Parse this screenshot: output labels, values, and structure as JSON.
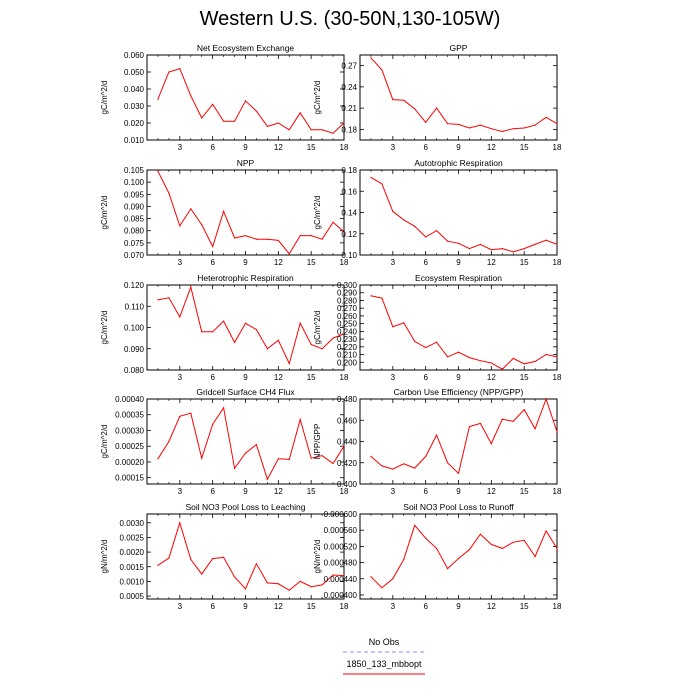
{
  "title": "Western U.S. (30-50N,130-105W)",
  "legend": {
    "entries": [
      {
        "name": "No Obs",
        "color": "#8888ee",
        "dashed": true
      },
      {
        "name": "1850_133_mbbopt",
        "color": "#ff0000",
        "dashed": false
      }
    ]
  },
  "chart_data": [
    {
      "type": "line",
      "title": "Net Ecosystem Exchange",
      "ylabel": "gC/m^2/d",
      "xlim": [
        0,
        18
      ],
      "xticks": [
        3,
        6,
        9,
        12,
        15,
        18
      ],
      "ylim": [
        0.01,
        0.06
      ],
      "yticks": [
        0.01,
        0.02,
        0.03,
        0.04,
        0.05,
        0.06
      ],
      "ytick_labels": [
        "0.010",
        "0.020",
        "0.030",
        "0.040",
        "0.050",
        "0.060"
      ],
      "series": [
        {
          "color": "#ff0000",
          "x": [
            1,
            2,
            3,
            4,
            5,
            6,
            7,
            8,
            9,
            10,
            11,
            12,
            13,
            14,
            15,
            16,
            17,
            18
          ],
          "y": [
            0.034,
            0.05,
            0.052,
            0.036,
            0.023,
            0.031,
            0.021,
            0.021,
            0.033,
            0.027,
            0.018,
            0.02,
            0.016,
            0.026,
            0.016,
            0.016,
            0.014,
            0.02
          ]
        }
      ]
    },
    {
      "type": "line",
      "title": "GPP",
      "ylabel": "gC/m^2/d",
      "xlim": [
        0,
        18
      ],
      "xticks": [
        3,
        6,
        9,
        12,
        15,
        18
      ],
      "ylim": [
        0.165,
        0.285
      ],
      "yticks": [
        0.18,
        0.21,
        0.24,
        0.27
      ],
      "ytick_labels": [
        "0.18",
        "0.21",
        "0.24",
        "0.27"
      ],
      "series": [
        {
          "color": "#ff0000",
          "x": [
            1,
            2,
            3,
            4,
            5,
            6,
            7,
            8,
            9,
            10,
            11,
            12,
            13,
            14,
            15,
            16,
            17,
            18
          ],
          "y": [
            0.281,
            0.264,
            0.222,
            0.221,
            0.209,
            0.19,
            0.21,
            0.188,
            0.187,
            0.182,
            0.186,
            0.181,
            0.177,
            0.181,
            0.182,
            0.186,
            0.197,
            0.188
          ]
        }
      ]
    },
    {
      "type": "line",
      "title": "NPP",
      "ylabel": "gC/m^2/d",
      "xlim": [
        0,
        18
      ],
      "xticks": [
        3,
        6,
        9,
        12,
        15,
        18
      ],
      "ylim": [
        0.07,
        0.105
      ],
      "yticks": [
        0.07,
        0.075,
        0.08,
        0.085,
        0.09,
        0.095,
        0.1,
        0.105
      ],
      "ytick_labels": [
        "0.070",
        "0.075",
        "0.080",
        "0.085",
        "0.090",
        "0.095",
        "0.100",
        "0.105"
      ],
      "series": [
        {
          "color": "#ff0000",
          "x": [
            1,
            2,
            3,
            4,
            5,
            6,
            7,
            8,
            9,
            10,
            11,
            12,
            13,
            14,
            15,
            16,
            17,
            18
          ],
          "y": [
            0.1045,
            0.0955,
            0.082,
            0.089,
            0.0825,
            0.0735,
            0.088,
            0.077,
            0.078,
            0.0765,
            0.0765,
            0.076,
            0.0705,
            0.078,
            0.078,
            0.0765,
            0.0835,
            0.0795
          ]
        }
      ]
    },
    {
      "type": "line",
      "title": "Autotrophic Respiration",
      "ylabel": "gC/m^2/d",
      "xlim": [
        0,
        18
      ],
      "xticks": [
        3,
        6,
        9,
        12,
        15,
        18
      ],
      "ylim": [
        0.1,
        0.18
      ],
      "yticks": [
        0.1,
        0.12,
        0.14,
        0.16,
        0.18
      ],
      "ytick_labels": [
        "0.10",
        "0.12",
        "0.14",
        "0.16",
        "0.18"
      ],
      "series": [
        {
          "color": "#ff0000",
          "x": [
            1,
            2,
            3,
            4,
            5,
            6,
            7,
            8,
            9,
            10,
            11,
            12,
            13,
            14,
            15,
            16,
            17,
            18
          ],
          "y": [
            0.173,
            0.167,
            0.141,
            0.133,
            0.127,
            0.117,
            0.123,
            0.113,
            0.111,
            0.106,
            0.11,
            0.105,
            0.106,
            0.103,
            0.106,
            0.11,
            0.114,
            0.11
          ]
        }
      ]
    },
    {
      "type": "line",
      "title": "Heterotrophic Respiration",
      "ylabel": "gC/m^2/d",
      "xlim": [
        0,
        18
      ],
      "xticks": [
        3,
        6,
        9,
        12,
        15,
        18
      ],
      "ylim": [
        0.08,
        0.12
      ],
      "yticks": [
        0.08,
        0.09,
        0.1,
        0.11,
        0.12
      ],
      "ytick_labels": [
        "0.080",
        "0.090",
        "0.100",
        "0.110",
        "0.120"
      ],
      "series": [
        {
          "color": "#ff0000",
          "x": [
            1,
            2,
            3,
            4,
            5,
            6,
            7,
            8,
            9,
            10,
            11,
            12,
            13,
            14,
            15,
            16,
            17,
            18
          ],
          "y": [
            0.113,
            0.114,
            0.105,
            0.119,
            0.098,
            0.098,
            0.103,
            0.093,
            0.102,
            0.099,
            0.09,
            0.094,
            0.083,
            0.102,
            0.092,
            0.09,
            0.095,
            0.097
          ]
        }
      ]
    },
    {
      "type": "line",
      "title": "Ecosystem Respiration",
      "ylabel": "gC/m^2/d",
      "xlim": [
        0,
        18
      ],
      "xticks": [
        3,
        6,
        9,
        12,
        15,
        18
      ],
      "ylim": [
        0.19,
        0.3
      ],
      "yticks": [
        0.2,
        0.21,
        0.22,
        0.23,
        0.24,
        0.25,
        0.26,
        0.27,
        0.28,
        0.29,
        0.3
      ],
      "ytick_labels": [
        "0.200",
        "0.210",
        "0.220",
        "0.230",
        "0.240",
        "0.250",
        "0.260",
        "0.270",
        "0.280",
        "0.290",
        "0.300"
      ],
      "series": [
        {
          "color": "#ff0000",
          "x": [
            1,
            2,
            3,
            4,
            5,
            6,
            7,
            8,
            9,
            10,
            11,
            12,
            13,
            14,
            15,
            16,
            17,
            18
          ],
          "y": [
            0.286,
            0.283,
            0.246,
            0.251,
            0.227,
            0.219,
            0.226,
            0.207,
            0.213,
            0.206,
            0.202,
            0.199,
            0.191,
            0.205,
            0.198,
            0.201,
            0.21,
            0.207
          ]
        }
      ]
    },
    {
      "type": "line",
      "title": "Gridcell Surface CH4 Flux",
      "ylabel": "gC/m^2/d",
      "xlim": [
        0,
        18
      ],
      "xticks": [
        3,
        6,
        9,
        12,
        15,
        18
      ],
      "ylim": [
        0.00013,
        0.0004
      ],
      "yticks": [
        0.00015,
        0.0002,
        0.00025,
        0.0003,
        0.00035,
        0.0004
      ],
      "ytick_labels": [
        "0.00015",
        "0.00020",
        "0.00025",
        "0.00030",
        "0.00035",
        "0.00040"
      ],
      "series": [
        {
          "color": "#ff0000",
          "x": [
            1,
            2,
            3,
            4,
            5,
            6,
            7,
            8,
            9,
            10,
            11,
            12,
            13,
            14,
            15,
            16,
            17,
            18
          ],
          "y": [
            0.00021,
            0.000265,
            0.000345,
            0.000355,
            0.000212,
            0.00032,
            0.000372,
            0.00018,
            0.000228,
            0.000255,
            0.000145,
            0.00021,
            0.000208,
            0.000335,
            0.000212,
            0.00022,
            0.000195,
            0.00025
          ]
        }
      ]
    },
    {
      "type": "line",
      "title": "Carbon Use Efficiency (NPP/GPP)",
      "ylabel": "NPP/GPP",
      "xlim": [
        0,
        18
      ],
      "xticks": [
        3,
        6,
        9,
        12,
        15,
        18
      ],
      "ylim": [
        0.4,
        0.48
      ],
      "yticks": [
        0.4,
        0.42,
        0.44,
        0.46,
        0.48
      ],
      "ytick_labels": [
        "0.400",
        "0.420",
        "0.440",
        "0.460",
        "0.480"
      ],
      "series": [
        {
          "color": "#ff0000",
          "x": [
            1,
            2,
            3,
            4,
            5,
            6,
            7,
            8,
            9,
            10,
            11,
            12,
            13,
            14,
            15,
            16,
            17,
            18
          ],
          "y": [
            0.426,
            0.417,
            0.414,
            0.419,
            0.415,
            0.426,
            0.446,
            0.42,
            0.41,
            0.454,
            0.457,
            0.438,
            0.461,
            0.459,
            0.47,
            0.452,
            0.48,
            0.449
          ]
        }
      ]
    },
    {
      "type": "line",
      "title": "Soil NO3 Pool Loss to Leaching",
      "ylabel": "gN/m^2/d",
      "xlim": [
        0,
        18
      ],
      "xticks": [
        3,
        6,
        9,
        12,
        15,
        18
      ],
      "ylim": [
        0.0004,
        0.0033
      ],
      "yticks": [
        0.0005,
        0.001,
        0.0015,
        0.002,
        0.0025,
        0.003
      ],
      "ytick_labels": [
        "0.0005",
        "0.0010",
        "0.0015",
        "0.0020",
        "0.0025",
        "0.0030"
      ],
      "series": [
        {
          "color": "#ff0000",
          "x": [
            1,
            2,
            3,
            4,
            5,
            6,
            7,
            8,
            9,
            10,
            11,
            12,
            13,
            14,
            15,
            16,
            17,
            18
          ],
          "y": [
            0.00155,
            0.0018,
            0.003,
            0.00175,
            0.00125,
            0.00178,
            0.00182,
            0.00115,
            0.00075,
            0.0016,
            0.00095,
            0.00092,
            0.0007,
            0.001,
            0.00082,
            0.00088,
            0.00122,
            0.0012
          ]
        }
      ]
    },
    {
      "type": "line",
      "title": "Soil NO3 Pool Loss to Runoff",
      "ylabel": "gN/m^2/d",
      "xlim": [
        0,
        18
      ],
      "xticks": [
        3,
        6,
        9,
        12,
        15,
        18
      ],
      "ylim": [
        0.00039,
        0.0006
      ],
      "yticks": [
        0.0004,
        0.00044,
        0.00048,
        0.00052,
        0.00056,
        0.0006
      ],
      "ytick_labels": [
        "0.000400",
        "0.000440",
        "0.000480",
        "0.000520",
        "0.000560",
        "0.000600"
      ],
      "series": [
        {
          "color": "#ff0000",
          "x": [
            1,
            2,
            3,
            4,
            5,
            6,
            7,
            8,
            9,
            10,
            11,
            12,
            13,
            14,
            15,
            16,
            17,
            18
          ],
          "y": [
            0.000445,
            0.000418,
            0.00044,
            0.000488,
            0.000572,
            0.00054,
            0.000515,
            0.000465,
            0.00049,
            0.000512,
            0.00055,
            0.000525,
            0.000515,
            0.00053,
            0.000535,
            0.000495,
            0.000558,
            0.000515
          ]
        }
      ]
    }
  ]
}
